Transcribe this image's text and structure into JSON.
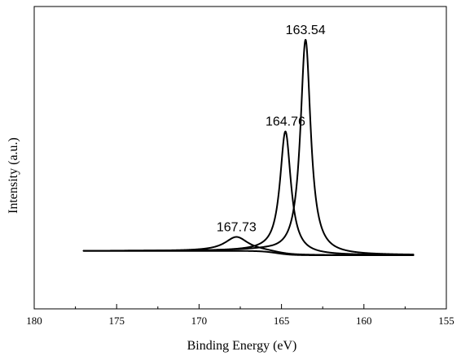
{
  "chart_data": {
    "type": "line",
    "title": "",
    "xlabel": "Binding Energy (eV)",
    "ylabel": "Intensity (a.u.)",
    "xlim": [
      180,
      155
    ],
    "x_reversed": true,
    "ylim": [
      0,
      1.1
    ],
    "y_ticks_shown": false,
    "grid": false,
    "x_ticks": [
      180,
      175,
      170,
      165,
      160,
      155
    ],
    "x_tick_labels": [
      "180",
      "175",
      "170",
      "165",
      "160",
      "155"
    ],
    "x_range_plotted": [
      177,
      157
    ],
    "baseline": {
      "high_be_level": 0.02,
      "low_be_level": 0.0,
      "step_center": 165.3,
      "step_width": 0.9
    },
    "peaks": [
      {
        "center": 163.54,
        "height": 1.0,
        "fwhm": 0.75,
        "label": "163.54"
      },
      {
        "center": 164.76,
        "height": 0.57,
        "fwhm": 0.8,
        "label": "164.76"
      },
      {
        "center": 167.73,
        "height": 0.065,
        "fwhm": 1.7,
        "label": "167.73"
      }
    ],
    "series": [
      {
        "label": "163.54"
      },
      {
        "label": "164.76"
      },
      {
        "label": "167.73"
      },
      {
        "label": "background"
      }
    ]
  }
}
